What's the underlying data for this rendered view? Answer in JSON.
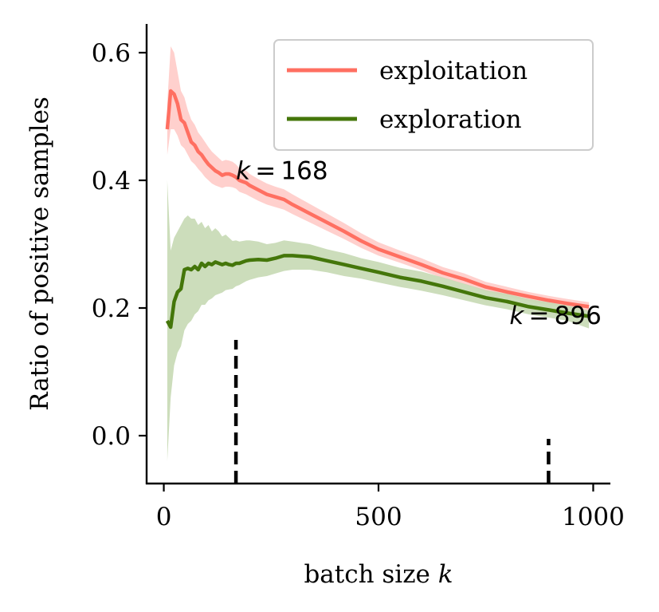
{
  "chart_data": {
    "type": "line",
    "xlabel": "batch size",
    "xlabel_var": "k",
    "ylabel": "Ratio of positive samples",
    "xlim": [
      -40,
      1040
    ],
    "ylim": [
      -0.075,
      0.645
    ],
    "xticks": [
      0,
      500,
      1000
    ],
    "xtick_labels": [
      "0",
      "500",
      "1000"
    ],
    "yticks": [
      0.0,
      0.2,
      0.4,
      0.6
    ],
    "ytick_labels": [
      "0.0",
      "0.2",
      "0.4",
      "0.6"
    ],
    "grid": false,
    "legend_position": "top-right",
    "series": [
      {
        "name": "exploitation",
        "color": "#ff6f61",
        "band_color": "#ffc8c4",
        "x": [
          8,
          16,
          24,
          32,
          40,
          48,
          56,
          64,
          72,
          80,
          88,
          96,
          104,
          112,
          120,
          128,
          136,
          144,
          152,
          160,
          168,
          176,
          184,
          192,
          200,
          220,
          240,
          260,
          280,
          300,
          340,
          380,
          420,
          460,
          500,
          550,
          600,
          650,
          700,
          750,
          800,
          850,
          896,
          940,
          990
        ],
        "y": [
          0.48,
          0.54,
          0.535,
          0.52,
          0.495,
          0.49,
          0.475,
          0.46,
          0.455,
          0.445,
          0.44,
          0.432,
          0.425,
          0.42,
          0.415,
          0.412,
          0.408,
          0.41,
          0.41,
          0.408,
          0.405,
          0.4,
          0.398,
          0.396,
          0.392,
          0.385,
          0.378,
          0.374,
          0.37,
          0.362,
          0.348,
          0.334,
          0.32,
          0.305,
          0.292,
          0.28,
          0.268,
          0.255,
          0.245,
          0.233,
          0.225,
          0.218,
          0.212,
          0.207,
          0.202
        ],
        "lower": [
          0.44,
          0.48,
          0.48,
          0.47,
          0.455,
          0.45,
          0.44,
          0.43,
          0.425,
          0.418,
          0.412,
          0.405,
          0.4,
          0.395,
          0.392,
          0.39,
          0.388,
          0.39,
          0.39,
          0.389,
          0.387,
          0.382,
          0.38,
          0.378,
          0.375,
          0.368,
          0.362,
          0.358,
          0.354,
          0.347,
          0.334,
          0.321,
          0.308,
          0.294,
          0.282,
          0.271,
          0.259,
          0.247,
          0.237,
          0.226,
          0.218,
          0.211,
          0.205,
          0.2,
          0.195
        ],
        "upper": [
          0.52,
          0.61,
          0.6,
          0.57,
          0.54,
          0.53,
          0.51,
          0.495,
          0.487,
          0.475,
          0.468,
          0.46,
          0.452,
          0.445,
          0.44,
          0.435,
          0.43,
          0.432,
          0.431,
          0.429,
          0.425,
          0.419,
          0.417,
          0.415,
          0.41,
          0.402,
          0.395,
          0.39,
          0.386,
          0.378,
          0.363,
          0.348,
          0.333,
          0.317,
          0.303,
          0.29,
          0.278,
          0.264,
          0.254,
          0.241,
          0.233,
          0.225,
          0.219,
          0.214,
          0.209
        ]
      },
      {
        "name": "exploration",
        "color": "#44760a",
        "band_color": "#c7d9b4",
        "x": [
          8,
          16,
          24,
          32,
          40,
          48,
          56,
          64,
          72,
          80,
          88,
          96,
          104,
          112,
          120,
          128,
          136,
          144,
          152,
          160,
          168,
          176,
          184,
          192,
          200,
          220,
          240,
          260,
          280,
          300,
          340,
          380,
          420,
          460,
          500,
          550,
          600,
          650,
          700,
          750,
          800,
          850,
          896,
          940,
          990
        ],
        "y": [
          0.18,
          0.17,
          0.21,
          0.225,
          0.23,
          0.26,
          0.262,
          0.26,
          0.265,
          0.26,
          0.27,
          0.265,
          0.27,
          0.268,
          0.272,
          0.27,
          0.268,
          0.27,
          0.268,
          0.267,
          0.27,
          0.27,
          0.272,
          0.274,
          0.275,
          0.276,
          0.275,
          0.278,
          0.282,
          0.282,
          0.28,
          0.274,
          0.268,
          0.262,
          0.256,
          0.248,
          0.242,
          0.234,
          0.225,
          0.216,
          0.21,
          0.202,
          0.197,
          0.192,
          0.187
        ],
        "lower": [
          -0.04,
          0.06,
          0.11,
          0.13,
          0.14,
          0.165,
          0.175,
          0.18,
          0.19,
          0.195,
          0.205,
          0.205,
          0.212,
          0.215,
          0.22,
          0.222,
          0.224,
          0.228,
          0.229,
          0.23,
          0.234,
          0.236,
          0.239,
          0.242,
          0.244,
          0.248,
          0.25,
          0.254,
          0.258,
          0.26,
          0.26,
          0.256,
          0.25,
          0.246,
          0.24,
          0.233,
          0.227,
          0.22,
          0.212,
          0.204,
          0.198,
          0.19,
          0.185,
          0.18,
          0.168
        ],
        "upper": [
          0.4,
          0.29,
          0.31,
          0.32,
          0.33,
          0.34,
          0.345,
          0.34,
          0.34,
          0.33,
          0.335,
          0.325,
          0.33,
          0.32,
          0.325,
          0.32,
          0.312,
          0.315,
          0.31,
          0.305,
          0.306,
          0.304,
          0.305,
          0.306,
          0.306,
          0.304,
          0.3,
          0.302,
          0.306,
          0.304,
          0.3,
          0.292,
          0.286,
          0.278,
          0.272,
          0.263,
          0.257,
          0.248,
          0.238,
          0.228,
          0.222,
          0.214,
          0.209,
          0.204,
          0.196
        ]
      }
    ],
    "markers": [
      {
        "x": 168,
        "y_top": 0.15,
        "label_var": "k",
        "label_value": "168",
        "label_x": 168,
        "label_y": 0.402
      },
      {
        "x": 896,
        "y_top": -0.005,
        "label_var": "k",
        "label_value": "896",
        "label_x": 805,
        "label_y": 0.175
      }
    ]
  }
}
